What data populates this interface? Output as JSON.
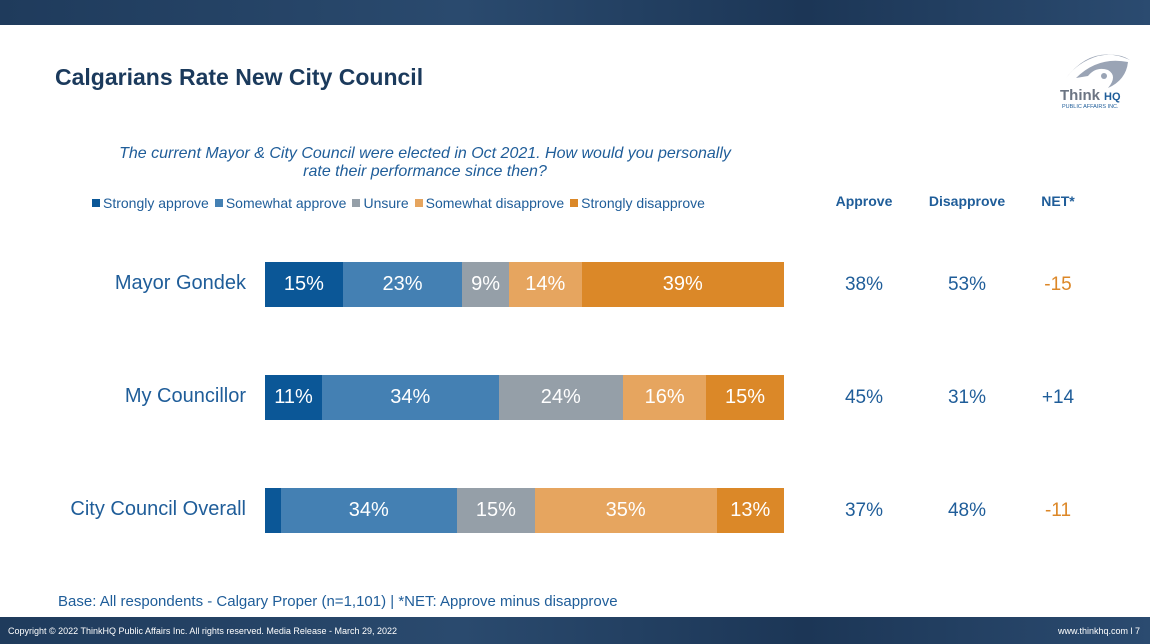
{
  "title": "Calgarians Rate New City Council",
  "logo": {
    "text": "ThinkHQ",
    "sub": "PUBLIC AFFAIRS INC."
  },
  "footer": {
    "copyright": "Copyright © 2022 ThinkHQ Public Affairs Inc. All rights reserved. Media Release - March 29, 2022",
    "page": "www.thinkhq.com l 7"
  },
  "base_note": "Base: All respondents - Calgary Proper (n=1,101) | *NET: Approve minus disapprove",
  "colors": {
    "strongly_approve": "#0b5797",
    "somewhat_approve": "#4480b3",
    "unsure": "#959fa8",
    "somewhat_disapprove": "#e6a55f",
    "strongly_disapprove": "#db8828"
  },
  "chart_data": {
    "type": "bar",
    "orientation": "horizontal-stacked-100",
    "title": "The current Mayor & City Council were elected in Oct 2021. How would you personally rate their performance since then?",
    "legend_position": "top",
    "categories": [
      "Mayor Gondek",
      "My Councillor",
      "City Council Overall"
    ],
    "series": [
      {
        "name": "Strongly approve",
        "values": [
          15,
          11,
          3
        ],
        "labels": [
          "15%",
          "11%",
          ""
        ]
      },
      {
        "name": "Somewhat approve",
        "values": [
          23,
          34,
          34
        ],
        "labels": [
          "23%",
          "34%",
          "34%"
        ]
      },
      {
        "name": "Unsure",
        "values": [
          9,
          24,
          15
        ],
        "labels": [
          "9%",
          "24%",
          "15%"
        ]
      },
      {
        "name": "Somewhat disapprove",
        "values": [
          14,
          16,
          35
        ],
        "labels": [
          "14%",
          "16%",
          "35%"
        ]
      },
      {
        "name": "Strongly disapprove",
        "values": [
          39,
          15,
          13
        ],
        "labels": [
          "39%",
          "15%",
          "13%"
        ]
      }
    ],
    "summary_headers": [
      "Approve",
      "Disapprove",
      "NET*"
    ],
    "summary": [
      {
        "approve": "38%",
        "disapprove": "53%",
        "net": "-15"
      },
      {
        "approve": "45%",
        "disapprove": "31%",
        "net": "+14"
      },
      {
        "approve": "37%",
        "disapprove": "48%",
        "net": "-11"
      }
    ]
  }
}
